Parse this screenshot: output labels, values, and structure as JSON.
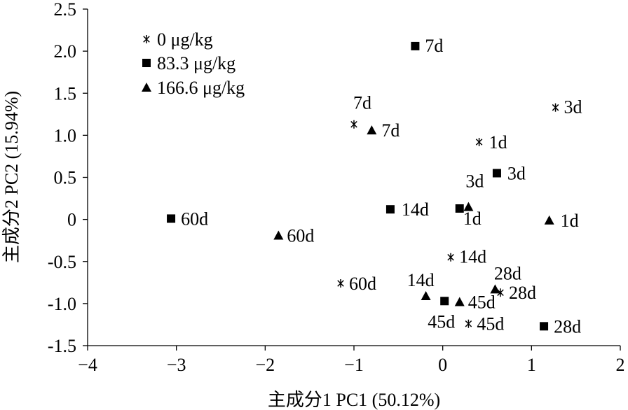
{
  "chart_data": {
    "type": "scatter",
    "title": "",
    "xlabel": "主成分1 PC1 (50.12%)",
    "ylabel": "主成分2  PC2 (15.94%)",
    "xlim": [
      -4,
      2
    ],
    "ylim": [
      -1.5,
      2.5
    ],
    "xticks": [
      -4,
      -3,
      -2,
      -1,
      0,
      1,
      2
    ],
    "yticks": [
      2.5,
      2.0,
      1.5,
      1.0,
      0.5,
      0,
      -0.5,
      -1.0,
      -1.5
    ],
    "xtick_labels": [
      "−4",
      "−3",
      "−2",
      "−1",
      "0",
      "1",
      "2"
    ],
    "ytick_labels": [
      "2.5",
      "2.0",
      "1.5",
      "1.0",
      "0.5",
      "0",
      "-0.5",
      "-1.0",
      "-1.5"
    ],
    "grid": false,
    "legend_position": "top-left",
    "series": [
      {
        "name": "0 μg/kg",
        "marker": "asterisk",
        "color": "#000000",
        "points": [
          {
            "x": 1.27,
            "y": 1.33,
            "label": "3d"
          },
          {
            "x": -1.0,
            "y": 1.13,
            "label": "7d"
          },
          {
            "x": 0.41,
            "y": 0.92,
            "label": "1d"
          },
          {
            "x": 0.09,
            "y": -0.45,
            "label": "14d"
          },
          {
            "x": 0.65,
            "y": -0.87,
            "label": "28d"
          },
          {
            "x": -1.15,
            "y": -0.76,
            "label": "60d"
          },
          {
            "x": 0.29,
            "y": -1.24,
            "label": "45d"
          }
        ]
      },
      {
        "name": "83.3 μg/kg",
        "marker": "square",
        "color": "#000000",
        "points": [
          {
            "x": -0.31,
            "y": 2.06,
            "label": "7d"
          },
          {
            "x": 0.61,
            "y": 0.55,
            "label": "3d"
          },
          {
            "x": -0.59,
            "y": 0.12,
            "label": "14d"
          },
          {
            "x": 0.19,
            "y": 0.13,
            "label": "1d"
          },
          {
            "x": -3.06,
            "y": 0.01,
            "label": "60d"
          },
          {
            "x": 0.02,
            "y": -0.97,
            "label": "45d"
          },
          {
            "x": 1.14,
            "y": -1.27,
            "label": "28d"
          }
        ]
      },
      {
        "name": "166.6 μg/kg",
        "marker": "triangle",
        "color": "#000000",
        "points": [
          {
            "x": -0.8,
            "y": 1.06,
            "label": "7d"
          },
          {
            "x": 0.29,
            "y": 0.15,
            "label": "3d"
          },
          {
            "x": 1.2,
            "y": -0.01,
            "label": "1d"
          },
          {
            "x": -1.85,
            "y": -0.19,
            "label": "60d"
          },
          {
            "x": 0.59,
            "y": -0.83,
            "label": "28d"
          },
          {
            "x": -0.19,
            "y": -0.91,
            "label": "14d"
          },
          {
            "x": 0.19,
            "y": -0.98,
            "label": "45d"
          }
        ]
      }
    ]
  }
}
